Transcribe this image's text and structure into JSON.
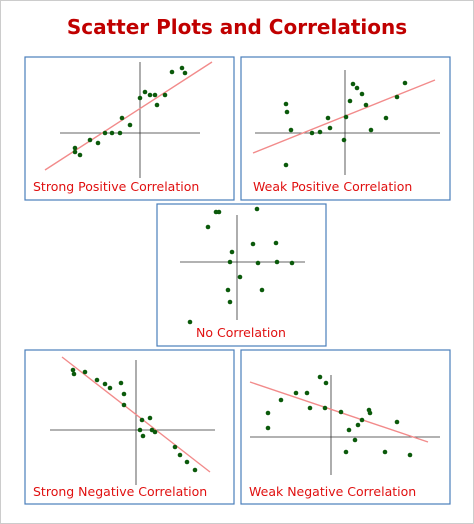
{
  "header": {
    "title": "Scatter Plots and Correlations"
  },
  "panels": [
    {
      "label": "Strong Positive Correlation"
    },
    {
      "label": "Weak Positive Correlation"
    },
    {
      "label": "No Correlation"
    },
    {
      "label": "Strong Negative Correlation"
    },
    {
      "label": "Weak Negative Correlation"
    }
  ]
}
